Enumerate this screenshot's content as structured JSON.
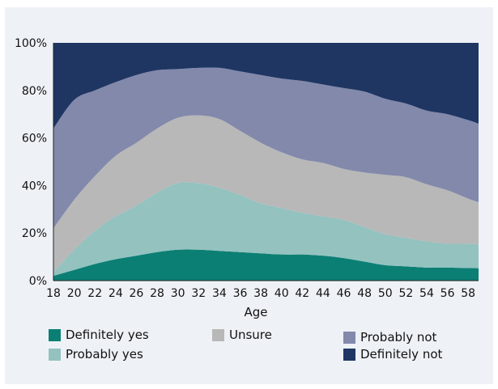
{
  "chart_data": {
    "type": "area",
    "stacked": true,
    "normalized": true,
    "xlabel": "Age",
    "ylabel": "",
    "x_ticks": [
      18,
      20,
      22,
      24,
      26,
      28,
      30,
      32,
      34,
      36,
      38,
      40,
      42,
      44,
      46,
      48,
      50,
      52,
      54,
      56,
      58
    ],
    "y_ticks": [
      "0%",
      "20%",
      "40%",
      "60%",
      "80%",
      "100%"
    ],
    "ylim": [
      0,
      100
    ],
    "xlim": [
      18,
      59
    ],
    "x": [
      18,
      20,
      22,
      24,
      26,
      28,
      30,
      32,
      34,
      36,
      38,
      40,
      42,
      44,
      46,
      48,
      50,
      52,
      54,
      56,
      58,
      59
    ],
    "series": [
      {
        "name": "Definitely yes",
        "color": "#0c7f74",
        "values": [
          2,
          4.5,
          7,
          9,
          10.5,
          12,
          13,
          13,
          12.5,
          12,
          11.5,
          11,
          11,
          10.5,
          9.5,
          8,
          6.5,
          6,
          5.5,
          5.5,
          5.3,
          5.2
        ]
      },
      {
        "name": "Probably yes",
        "color": "#93c2bf",
        "values": [
          1.5,
          8.5,
          14,
          18,
          21,
          25,
          28,
          28,
          26.5,
          24,
          21,
          19.5,
          17.5,
          16.5,
          16,
          14.5,
          13,
          12,
          11,
          10,
          10.2,
          10
        ]
      },
      {
        "name": "Unsure",
        "color": "#b8b8b8",
        "values": [
          18.5,
          21,
          23,
          25.5,
          26.5,
          27,
          27.5,
          28.5,
          29,
          27,
          25.5,
          23.5,
          22.5,
          22.5,
          21.5,
          23,
          25,
          25.5,
          24,
          22.5,
          19,
          17.8
        ]
      },
      {
        "name": "Probably not",
        "color": "#8389ab",
        "values": [
          42,
          42,
          36,
          31,
          28.5,
          24.5,
          20.5,
          20,
          21.5,
          25,
          28.5,
          31,
          33,
          33,
          34,
          34,
          32,
          31,
          31,
          32,
          33,
          33
        ]
      },
      {
        "name": "Definitely not",
        "color": "#1f3663",
        "values": [
          36,
          24,
          20,
          16.5,
          13.5,
          11.5,
          11,
          10.5,
          10.5,
          12,
          13.5,
          15,
          16,
          17.5,
          19,
          20.5,
          23.5,
          25.5,
          28.5,
          30,
          32.5,
          34
        ]
      }
    ],
    "grid": false,
    "legend_position": "bottom"
  },
  "legend": [
    {
      "label": "Definitely yes",
      "color": "#0c7f74"
    },
    {
      "label": "Probably yes",
      "color": "#93c2bf"
    },
    {
      "label": "Unsure",
      "color": "#b8b8b8"
    },
    {
      "label": "Probably not",
      "color": "#8389ab"
    },
    {
      "label": "Definitely not",
      "color": "#1f3663"
    }
  ]
}
